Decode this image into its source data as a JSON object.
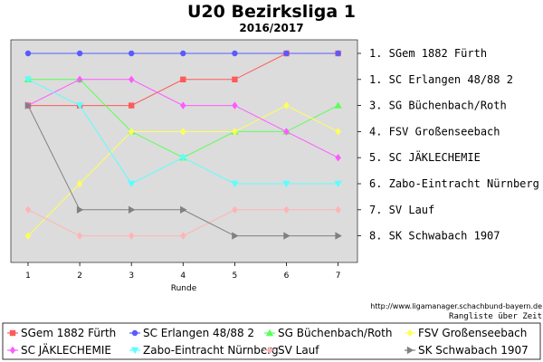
{
  "chart_data": {
    "type": "line",
    "title": "U20 Bezirksliga 1",
    "subtitle": "2016/2017",
    "xlabel": "Runde",
    "x": [
      1,
      2,
      3,
      4,
      5,
      6,
      7
    ],
    "ylim": [
      1,
      8
    ],
    "y_inverted": true,
    "grid": false,
    "background": "#dcdcdc",
    "source": "http://www.ligamanager.schachbund-bayern.de",
    "ranking_label": "Rangliste über Zeit",
    "standings": [
      "1. SGem 1882 Fürth",
      "1. SC Erlangen 48/88 2",
      "3. SG Büchenbach/Roth",
      "4. FSV Großenseebach",
      "5. SC JÄKLECHEMIE",
      "6. Zabo-Eintracht Nürnberg",
      "7. SV Lauf",
      "8. SK Schwabach 1907"
    ],
    "series": [
      {
        "name": "SGem 1882 Fürth",
        "color": "#ff5a5a",
        "marker": "square",
        "values": [
          3,
          3,
          3,
          2,
          2,
          1,
          1
        ]
      },
      {
        "name": "SC Erlangen 48/88 2",
        "color": "#5a5aff",
        "marker": "circle",
        "values": [
          1,
          1,
          1,
          1,
          1,
          1,
          1
        ]
      },
      {
        "name": "SG Büchenbach/Roth",
        "color": "#5aff5a",
        "marker": "triangle-up",
        "values": [
          2,
          2,
          4,
          5,
          4,
          4,
          3
        ]
      },
      {
        "name": "FSV Großenseebach",
        "color": "#ffff5a",
        "marker": "diamond",
        "values": [
          8,
          6,
          4,
          4,
          4,
          3,
          4
        ]
      },
      {
        "name": "SC JÄKLECHEMIE",
        "color": "#ff5aff",
        "marker": "diamond",
        "values": [
          3,
          2,
          2,
          3,
          3,
          4,
          5
        ]
      },
      {
        "name": "Zabo-Eintracht Nürnberg",
        "color": "#5affff",
        "marker": "triangle-down",
        "values": [
          2,
          3,
          6,
          5,
          6,
          6,
          6
        ]
      },
      {
        "name": "SV Lauf",
        "color": "#ffb4b4",
        "marker": "diamond",
        "values": [
          7,
          8,
          8,
          8,
          7,
          7,
          7
        ]
      },
      {
        "name": "SK Schwabach 1907",
        "color": "#808080",
        "marker": "triangle-right",
        "values": [
          3,
          7,
          7,
          7,
          8,
          8,
          8
        ]
      }
    ]
  }
}
